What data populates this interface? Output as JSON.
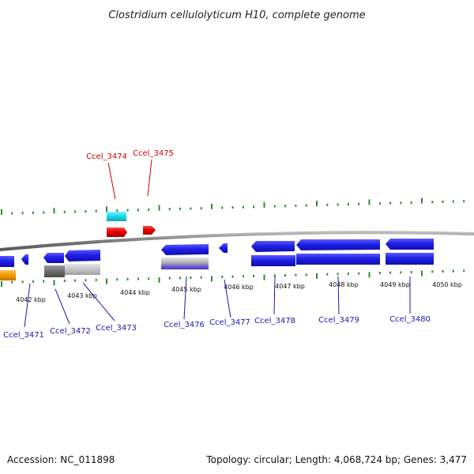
{
  "title": "Clostridium cellulolyticum H10, complete genome",
  "footer": {
    "accession": "Accession: NC_011898",
    "summary": "Topology: circular; Length: 4,068,724 bp; Genes: 3,477"
  },
  "colors": {
    "backbone": "#8a8a8a",
    "tick": "#2e8b2e",
    "forward_label": "#cc0000",
    "reverse_label": "#1a1aaa",
    "cds_blue": "#1f1fe6",
    "cds_red": "#e60000",
    "rna_cyan": "#19d7e6",
    "orange": "#f59a00",
    "gray": "#909090",
    "purple": "#6a5acd"
  },
  "ticks": [
    "4042 kbp",
    "4043 kbp",
    "4044 kbp",
    "4045 kbp",
    "4046 kbp",
    "4047 kbp",
    "4048 kbp",
    "4049 kbp",
    "4050 kbp"
  ],
  "gene_labels": [
    {
      "name": "Ccel_3474",
      "strand": "forward"
    },
    {
      "name": "Ccel_3475",
      "strand": "forward"
    },
    {
      "name": "Ccel_3471",
      "strand": "reverse"
    },
    {
      "name": "Ccel_3472",
      "strand": "reverse"
    },
    {
      "name": "Ccel_3473",
      "strand": "reverse"
    },
    {
      "name": "Ccel_3476",
      "strand": "reverse"
    },
    {
      "name": "Ccel_3477",
      "strand": "reverse"
    },
    {
      "name": "Ccel_3478",
      "strand": "reverse"
    },
    {
      "name": "Ccel_3479",
      "strand": "reverse"
    },
    {
      "name": "Ccel_3480",
      "strand": "reverse"
    }
  ]
}
